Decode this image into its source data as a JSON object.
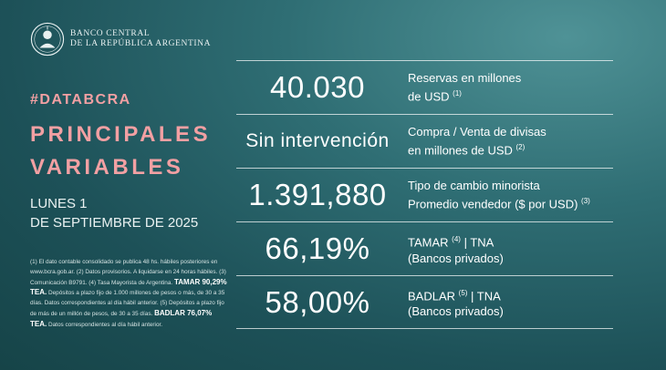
{
  "brand": {
    "line1": "BANCO CENTRAL",
    "line2": "DE LA REPÚBLICA ARGENTINA"
  },
  "hashtag": "#DATABCRA",
  "title": {
    "line1": "PRINCIPALES",
    "line2": "VARIABLES"
  },
  "date": {
    "line1": "LUNES 1",
    "line2": "DE SEPTIEMBRE DE 2025"
  },
  "indicators": [
    {
      "value": "40.030",
      "label_line1": "Reservas en millones",
      "label_line2": "de USD",
      "note": "(1)",
      "note2": ""
    },
    {
      "value": "Sin intervención",
      "label_line1": "Compra / Venta de divisas",
      "label_line2": "en millones de USD",
      "note": "(2)",
      "note2": ""
    },
    {
      "value": "1.391,880",
      "label_line1": "Tipo de cambio minorista",
      "label_line2": "Promedio vendedor ($ por USD)",
      "note": "(3)",
      "note2": ""
    },
    {
      "value": "66,19%",
      "label_line1": "TAMAR",
      "label_line1b": " | TNA",
      "label_line2": "(Bancos privados)",
      "note": "(4)"
    },
    {
      "value": "58,00%",
      "label_line1": "BADLAR",
      "label_line1b": " | TNA",
      "label_line2": "(Bancos privados)",
      "note": "(5)"
    }
  ],
  "footnotes": {
    "p1": "(1) El dato contable consolidado se publica 48 hs. hábiles posteriores en www.bcra.gob.ar. (2) Datos provisorios. A liquidarse en 24 horas hábiles. (3) Comunicación B9791. (4) Tasa Mayorista de Argentina.",
    "tamar_bold": "TAMAR 90,29% TEA.",
    "p2": " Depósitos a plazo fijo de 1.000 millones de pesos o más, de 30 a 35 días. Datos correspondientes al día hábil anterior. (5) Depósitos a plazo fijo de más de un millón de pesos, de 30 a 35 días.",
    "badlar_bold": "BADLAR 76,07% TEA.",
    "p3": " Datos correspondientes al día hábil anterior."
  }
}
